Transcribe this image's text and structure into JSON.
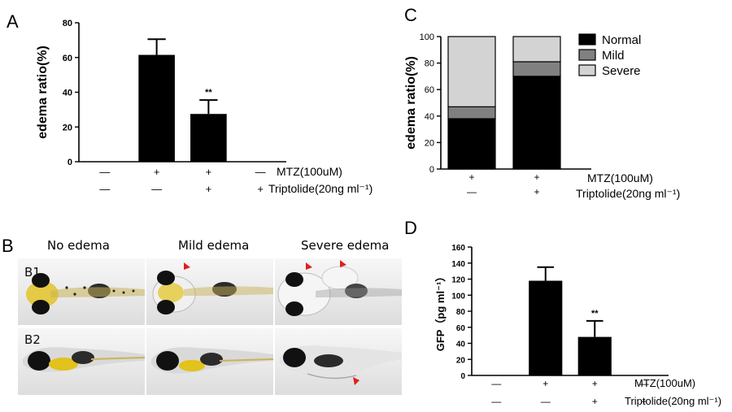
{
  "panels": {
    "A": "A",
    "B": "B",
    "C": "C",
    "D": "D"
  },
  "photos": {
    "columns": [
      "No edema",
      "Mild edema",
      "Severe edema"
    ],
    "rows": [
      "B1",
      "B2"
    ]
  },
  "colors": {
    "bar": "#000000",
    "mild": "#808080",
    "severe": "#d3d3d3",
    "arrow": "#e0201b",
    "yolk": "#d9c21a"
  },
  "chart_data": [
    {
      "type": "bar",
      "panel": "A",
      "ylabel": "edema ratio(%)",
      "ylim": [
        0,
        80
      ],
      "yticks": [
        0,
        20,
        40,
        60,
        80
      ],
      "groups": 4,
      "values": [
        0,
        61.5,
        27.5,
        0
      ],
      "errors": [
        0,
        9,
        8,
        0
      ],
      "significance": [
        "",
        "",
        "**",
        ""
      ],
      "treatments": [
        {
          "name": "MTZ(100uM)",
          "signs": [
            "—",
            "+",
            "+",
            "—"
          ]
        },
        {
          "name": "Triptolide(20ng ml⁻¹)",
          "signs": [
            "—",
            "—",
            "+",
            "+"
          ]
        }
      ]
    },
    {
      "type": "bar",
      "stacked": true,
      "panel": "C",
      "ylabel": "edema ratio(%)",
      "ylim": [
        0,
        100
      ],
      "yticks": [
        0,
        20,
        40,
        60,
        80,
        100
      ],
      "series": [
        {
          "name": "Normal",
          "values": [
            38,
            70
          ]
        },
        {
          "name": "Mild",
          "values": [
            9,
            11
          ]
        },
        {
          "name": "Severe",
          "values": [
            53,
            19
          ]
        }
      ],
      "legend_position": "top-right",
      "treatments": [
        {
          "name": "MTZ(100uM)",
          "signs": [
            "+",
            "+"
          ]
        },
        {
          "name": "Triptolide(20ng ml⁻¹)",
          "signs": [
            "—",
            "+"
          ]
        }
      ]
    },
    {
      "type": "bar",
      "panel": "D",
      "ylabel": "GFP（pg ml⁻¹）",
      "ylim": [
        0,
        160
      ],
      "yticks": [
        0,
        20,
        40,
        60,
        80,
        100,
        120,
        140,
        160
      ],
      "groups": 4,
      "values": [
        0,
        118,
        48,
        0
      ],
      "errors": [
        0,
        17,
        20,
        0
      ],
      "significance": [
        "",
        "",
        "**",
        ""
      ],
      "treatments": [
        {
          "name": "MTZ(100uM)",
          "signs": [
            "—",
            "+",
            "+",
            "—"
          ]
        },
        {
          "name": "Triptolide(20ng ml⁻¹)",
          "signs": [
            "—",
            "—",
            "+",
            "+"
          ]
        }
      ]
    }
  ]
}
